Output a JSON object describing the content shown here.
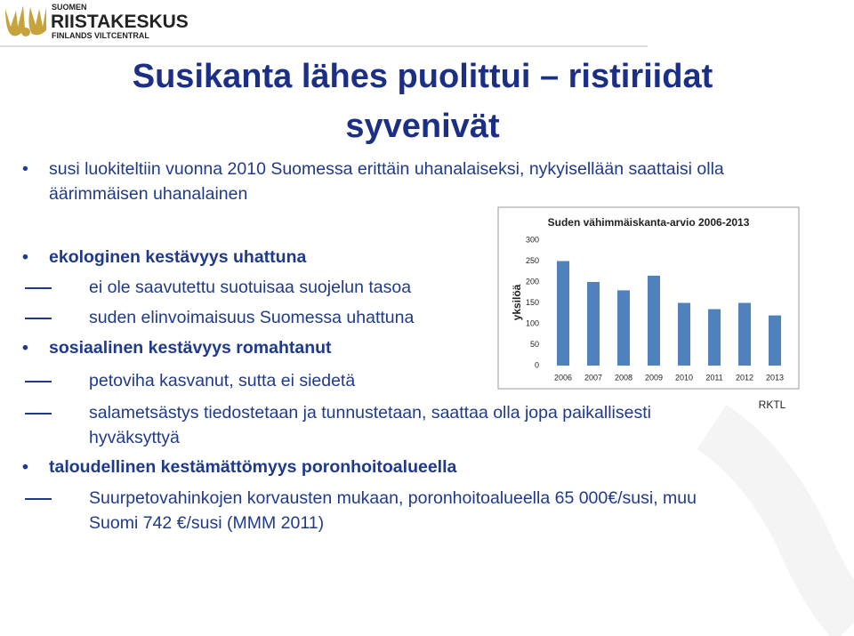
{
  "logo": {
    "line1": "SUOMEN",
    "line2": "RIISTAKESKUS",
    "line3": "FINLANDS VILTCENTRAL"
  },
  "title": "Susikanta lähes puolittui – ristiriidat syvenivät",
  "bullets": [
    {
      "text": "susi luokiteltiin vuonna 2010 Suomessa erittäin uhanalaiseksi, nykyisellään saattaisi olla äärimmäisen uhanalainen",
      "bold": false,
      "sub": []
    },
    {
      "text": "ekologinen kestävyys uhattuna",
      "bold": true,
      "sub": [
        "ei ole saavutettu suotuisaa suojelun tasoa",
        "suden elinvoimaisuus Suomessa uhattuna"
      ]
    },
    {
      "text": "sosiaalinen kestävyys romahtanut",
      "bold": true,
      "sub": [
        "petoviha kasvanut, sutta ei siedetä",
        "salametsästys tiedostetaan ja tunnustetaan, saattaa olla jopa paikallisesti hyväksyttyä"
      ]
    },
    {
      "text": "taloudellinen kestämättömyys poronhoitoalueella",
      "bold": true,
      "sub": [
        "Suurpetovahinkojen korvausten mukaan, poronhoitoalueella 65 000€/susi, muu Suomi 742 €/susi (MMM 2011)"
      ]
    }
  ],
  "chart_data": {
    "type": "bar",
    "title": "Suden vähimmäiskanta-arvio 2006-2013",
    "y_label": "yksilöä",
    "categories": [
      "2006",
      "2007",
      "2008",
      "2009",
      "2010",
      "2011",
      "2012",
      "2013"
    ],
    "values": [
      250,
      200,
      180,
      215,
      150,
      135,
      150,
      120
    ],
    "color": "#4f81bd",
    "ylim": [
      0,
      300
    ],
    "yticks": [
      0,
      50,
      100,
      150,
      200,
      250,
      300
    ],
    "grid": false
  },
  "source": "RKTL"
}
